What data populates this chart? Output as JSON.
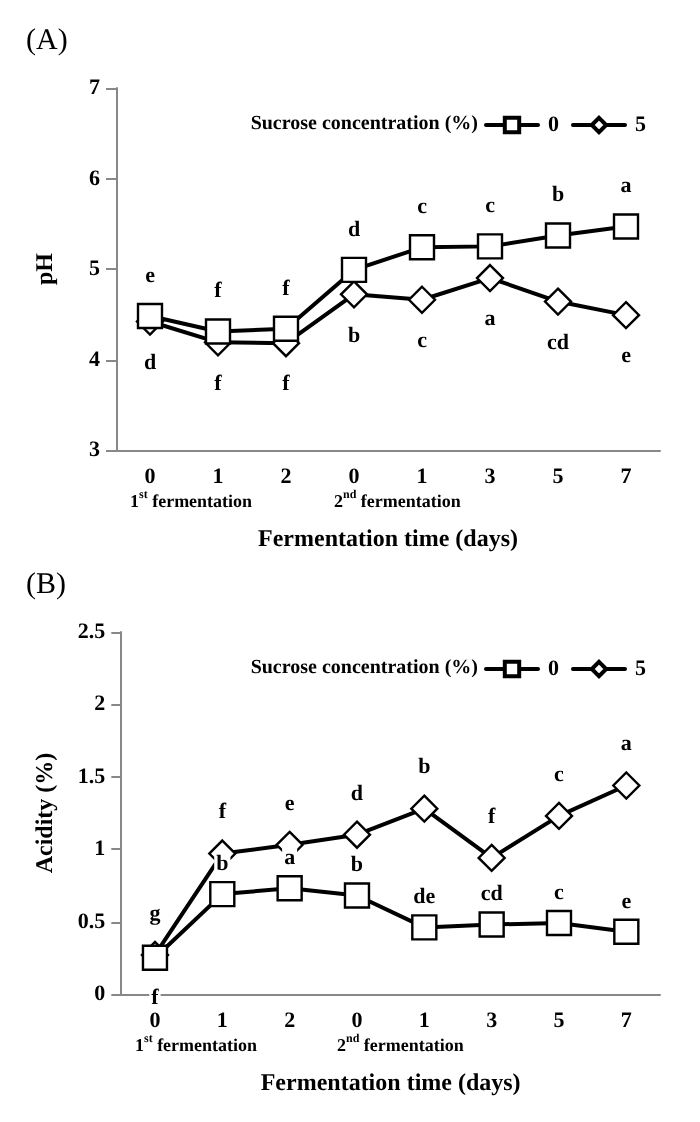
{
  "chart_data": [
    {
      "type": "line",
      "title": "(A)",
      "xlabel": "Fermentation time (days)",
      "ylabel": "pH",
      "legend_title": "Sucrose concentration (%)",
      "categories": [
        "0",
        "1",
        "2",
        "0",
        "1",
        "3",
        "5",
        "7"
      ],
      "series": [
        {
          "name": "0",
          "color": "#000000",
          "marker": "square",
          "values": [
            4.48,
            4.31,
            4.34,
            4.99,
            5.24,
            5.25,
            5.37,
            5.47
          ],
          "value_labels": [
            "e",
            "f",
            "f",
            "d",
            "c",
            "c",
            "b",
            "a"
          ]
        },
        {
          "name": "5",
          "color": "#000000",
          "marker": "diamond",
          "values": [
            4.42,
            4.19,
            4.18,
            4.72,
            4.66,
            4.9,
            4.64,
            4.49
          ],
          "value_labels": [
            "d",
            "f",
            "f",
            "b",
            "c",
            "a",
            "cd",
            "e"
          ]
        }
      ],
      "ylim": [
        3,
        7
      ],
      "yticks": [
        3,
        4,
        5,
        6,
        7
      ],
      "legend": "top right",
      "grid": false,
      "annotations": [
        "1$^{st}$ fermentation",
        "2$^{nd}$ fermentation"
      ]
    },
    {
      "type": "line",
      "title": "(B)",
      "xlabel": "Fermentation time (days)",
      "ylabel": "Acidity (%)",
      "legend_title": "Sucrose concentration (%)",
      "categories": [
        "0",
        "1",
        "2",
        "0",
        "1",
        "3",
        "5",
        "7"
      ],
      "series": [
        {
          "name": "0",
          "color": "#000000",
          "marker": "square",
          "values": [
            0.25,
            0.69,
            0.73,
            0.68,
            0.46,
            0.48,
            0.49,
            0.43
          ],
          "value_labels": [
            "f",
            "b",
            "a",
            "b",
            "de",
            "cd",
            "c",
            "e"
          ]
        },
        {
          "name": "5",
          "color": "#000000",
          "marker": "diamond",
          "values": [
            0.27,
            0.97,
            1.03,
            1.1,
            1.28,
            0.94,
            1.23,
            1.44
          ],
          "value_labels": [
            "g",
            "f",
            "e",
            "d",
            "b",
            "f",
            "c",
            "a"
          ]
        }
      ],
      "ylim": [
        0,
        2.5
      ],
      "yticks": [
        0,
        0.5,
        1,
        1.5,
        2,
        2.5
      ],
      "legend": "top right",
      "grid": false,
      "annotations": [
        "1$^{st}$ fermentation",
        "2$^{nd}$ fermentation"
      ]
    }
  ]
}
